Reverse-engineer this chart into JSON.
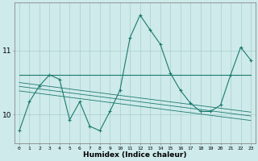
{
  "x": [
    0,
    1,
    2,
    3,
    4,
    5,
    6,
    7,
    8,
    9,
    10,
    11,
    12,
    13,
    14,
    15,
    16,
    17,
    18,
    19,
    20,
    21,
    22,
    23
  ],
  "y_main": [
    9.75,
    10.2,
    10.45,
    10.62,
    10.55,
    9.92,
    10.2,
    9.82,
    9.75,
    10.05,
    10.38,
    11.2,
    11.55,
    11.32,
    11.1,
    10.65,
    10.38,
    10.18,
    10.05,
    10.05,
    10.15,
    10.62,
    11.05,
    10.85
  ],
  "y_flat": [
    10.62,
    10.62,
    10.62,
    10.62,
    10.62,
    10.62,
    10.62,
    10.62,
    10.62,
    10.62,
    10.62,
    10.62,
    10.62,
    10.62,
    10.62,
    10.62,
    10.62,
    10.62,
    10.62,
    10.62,
    10.62,
    10.62,
    10.62,
    10.62
  ],
  "y_trend1": [
    10.5,
    10.48,
    10.46,
    10.44,
    10.42,
    10.4,
    10.38,
    10.36,
    10.34,
    10.32,
    10.3,
    10.28,
    10.26,
    10.24,
    10.22,
    10.2,
    10.18,
    10.16,
    10.14,
    10.12,
    10.1,
    10.08,
    10.06,
    10.04
  ],
  "y_trend2": [
    10.44,
    10.42,
    10.4,
    10.38,
    10.36,
    10.34,
    10.32,
    10.3,
    10.28,
    10.26,
    10.24,
    10.22,
    10.2,
    10.18,
    10.16,
    10.14,
    10.12,
    10.1,
    10.08,
    10.06,
    10.04,
    10.02,
    10.0,
    9.98
  ],
  "y_trend3": [
    10.37,
    10.35,
    10.33,
    10.31,
    10.29,
    10.27,
    10.25,
    10.23,
    10.21,
    10.19,
    10.17,
    10.15,
    10.13,
    10.11,
    10.09,
    10.07,
    10.05,
    10.03,
    10.01,
    9.99,
    9.97,
    9.95,
    9.93,
    9.91
  ],
  "color_main": "#1a7a6e",
  "color_flat": "#1a7a6e",
  "color_trend": "#1a7a6e",
  "bg_color": "#ceeaea",
  "grid_color": "#aacece",
  "xlabel": "Humidex (Indice chaleur)",
  "yticks": [
    10,
    11
  ],
  "ylim": [
    9.55,
    11.75
  ],
  "xlim": [
    -0.5,
    23.5
  ]
}
